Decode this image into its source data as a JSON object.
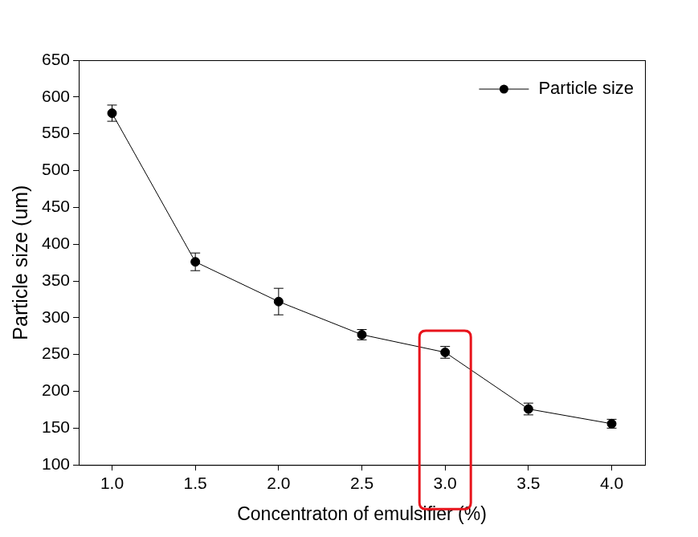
{
  "chart_data": {
    "type": "line",
    "x_label": "Concentraton of emulsifier (%)",
    "y_label": "Particle size (um)",
    "x": [
      1.0,
      1.5,
      2.0,
      2.5,
      3.0,
      3.5,
      4.0
    ],
    "series": [
      {
        "name": "Particle size",
        "color": "#000000",
        "marker": "circle",
        "line_style": "solid",
        "values": [
          578,
          376,
          322,
          277,
          253,
          176,
          156
        ],
        "errors": [
          11,
          12,
          18,
          7,
          8,
          8,
          6
        ]
      }
    ],
    "xlim": [
      0.8,
      4.2
    ],
    "xticks": [
      {
        "value": 1.0,
        "label": "1.0"
      },
      {
        "value": 1.5,
        "label": "1.5"
      },
      {
        "value": 2.0,
        "label": "2.0"
      },
      {
        "value": 2.5,
        "label": "2.5"
      },
      {
        "value": 3.0,
        "label": "3.0"
      },
      {
        "value": 3.5,
        "label": "3.5"
      },
      {
        "value": 4.0,
        "label": "4.0"
      }
    ],
    "ylim": [
      100,
      650
    ],
    "yticks": [
      100,
      150,
      200,
      250,
      300,
      350,
      400,
      450,
      500,
      550,
      600,
      650
    ],
    "highlight": 3.0,
    "grid": false,
    "legend": "upper right"
  }
}
